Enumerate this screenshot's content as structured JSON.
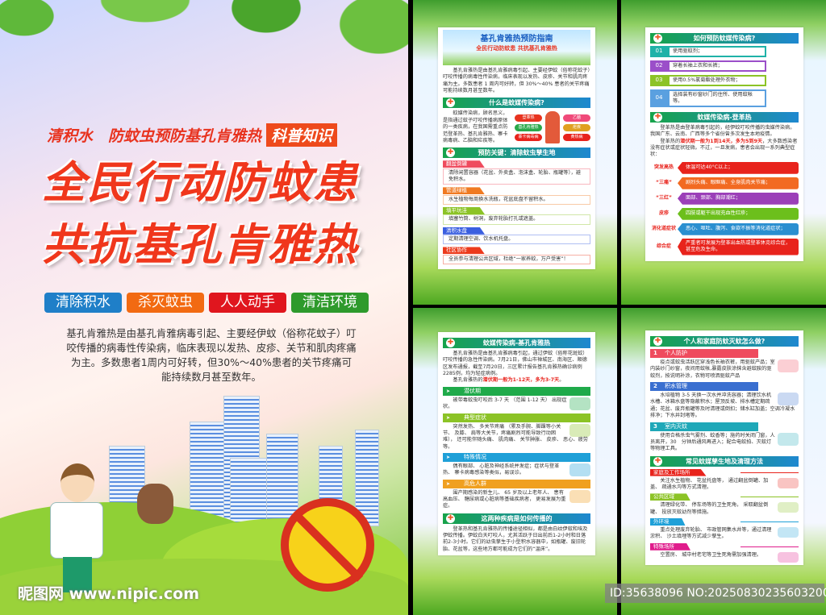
{
  "poster": {
    "subtitle": "清积水　防蚊虫预防基孔肯雅热",
    "badge": "科普知识",
    "title_line1": "全民行动防蚊患",
    "title_line2": "共抗基孔肯雅热",
    "tags": [
      {
        "label": "清除积水",
        "color": "#1f7fc8"
      },
      {
        "label": "杀灭蚊虫",
        "color": "#f26a12"
      },
      {
        "label": "人人动手",
        "color": "#e0161e"
      },
      {
        "label": "清洁环境",
        "color": "#2e9a2c"
      }
    ],
    "intro": "基孔肯雅热是由基孔肯雅病毒引起、主要经伊蚊（俗称花蚊子）叮咬传播的病毒性传染病，临床表现以发热、皮疹、关节和肌肉疼痛为主。多数患者1周内可好转，但30%～40%患者的关节疼痛可能持续数月甚至数年。",
    "watermark": "昵图网 www.nipic.com"
  },
  "panel1": {
    "banner_title": "基孔肯雅热预防指南",
    "banner_sub": "全民行动防蚊患 共抗基孔肯雅热",
    "intro": "基孔肯雅热是由基孔肯雅病毒引起、主要经伊蚊（俗称花蚊子）叮咬传播的病毒性传染病，临床表现以发热、皮疹、关节和肌肉疼痛为主。多数患者 1 周内可好转，但 30%～40% 患者的关节疼痛可能持续数月甚至数年。",
    "section1": "什么是蚊媒传染病?",
    "section1_text": "蚊媒传染病，顾名思义，是指通过蚊子叮咬传播病原体的一类疾病，在我国需重点防范登革热、基孔肯雅热、寨卡病毒病、乙脑和疟疾等。",
    "diseases_left": [
      "登革热",
      "基孔肯雅热",
      "寨卡病毒病"
    ],
    "diseases_right": [
      "乙脑",
      "疟疾",
      "黄热病"
    ],
    "section2": "预防关键：清除蚊虫孳生地",
    "items": [
      {
        "label": "翻盆倒罐",
        "text": "清除闲置容器（花盆、外卖盒、泡沫盒、轮胎、瓶罐等），避免积水。",
        "color": "#ef4b5e"
      },
      {
        "label": "管道绿植",
        "text": "水生植物每周换水洗瓶，花盆底盘不留积水。",
        "color": "#f07a22"
      },
      {
        "label": "填平坑洼",
        "text": "填塞竹筒、树洞，废弃轮胎打孔或遮盖。",
        "color": "#8cc326"
      },
      {
        "label": "清积水盘",
        "text": "定期清理空调、饮水机托盘。",
        "color": "#3a5fe0"
      },
      {
        "label": "社区协作",
        "text": "全员参与清理公共区域，杜绝“一家养蚊，万户受害”！",
        "color": "#ec3a1c"
      }
    ]
  },
  "panel2": {
    "section1": "如何预防蚊媒传染病?",
    "steps": [
      {
        "num": "01",
        "text": "使用驱蚊剂；",
        "color": "#1fb2a8"
      },
      {
        "num": "02",
        "text": "穿着长袖上衣和长裤；",
        "color": "#9b4fc9"
      },
      {
        "num": "03",
        "text": "使用0.5%氯菊酯处理外衣物；",
        "color": "#8cc326"
      },
      {
        "num": "04",
        "text": "选择装有纱窗纱门的住所、使用蚊帐等。",
        "color": "#5aa0e0"
      }
    ],
    "section2": "蚊媒传染病-登革热",
    "para1": "登革热是由登革病毒引起的，经伊蚊叮咬传播的虫媒传染病。我国广东、云南、广西等多个省份曾多次发生本地疫情。",
    "para2_pre": "登革热的",
    "para2_hl": "潜伏期一般为1到14天，多为5到9天",
    "para2_post": "，大多数感染者没有症状或症状轻微。不过，一旦发病，患者会出现一系列典型症状：",
    "symptoms": [
      {
        "key": "突发高热",
        "text": "体温可达40°C以上；",
        "color": "#e8231c"
      },
      {
        "key": "“三痛”",
        "text": "剧烈头痛、眼眶痛、全身肌肉关节痛；",
        "color": "#f26a22"
      },
      {
        "key": "“三红”",
        "text": "面部、颈部、胸部潮红；",
        "color": "#9b3fb8"
      },
      {
        "key": "皮疹",
        "text": "四肢或躯干出现充血性红疹；",
        "color": "#6cbf1c"
      },
      {
        "key": "消化道症状",
        "text": "恶心、呕吐、腹泻、食欲不振等消化道症状；",
        "color": "#2a8fd0"
      },
      {
        "key": "综合症",
        "text": "严重者可发展为登革出血热或登革休克综合症，甚至危及生命。",
        "color": "#e8231c"
      }
    ]
  },
  "panel3": {
    "section1": "蚊媒传染病-基孔肯雅热",
    "para1": "基孔肯雅热是由基孔肯雅病毒引起，通过伊蚊（俗称花斑蚊）叮咬传播的急性传染病。7月21日，佛山市禅城区、南海区、顺德区发布通报，截至7月20日，三区累计报告基孔肯雅热确诊病例2285例，均为轻症病例。",
    "para2_pre": "基孔肯雅热的",
    "para2_hl": "潜伏期一般为1-12天，多为3-7天",
    "para2_post": "。",
    "subs": [
      {
        "label": "潜伏期",
        "text": "被带毒蚊虫叮咬后 3-7 天 （范围 1-12 天） 出现症状。",
        "color": "#1faa4a"
      },
      {
        "label": "典型症状",
        "text": "突然发热、 多关节疼痛 （累及手腕、脚踝等小关节、 及膝、 肩等大关节，疼痛剧烈可能导致行动困难）， 还可能伴随头痛、 肌肉痛、 关节肿胀、 皮疹、 恶心、疲劳等。",
        "color": "#8cc326"
      },
      {
        "label": "特殊情况",
        "text": "偶有眼部、 心脏及神经系统并发症；症状与登革热、 寨卡病毒感染等类似，易误诊。",
        "color": "#1fa0d8"
      },
      {
        "label": "高危人群",
        "text": "围产期感染的新生儿、 65 岁及以上老年人、 患有高血压、 糖尿病或心脏病等基础疾病者， 更易发展为重症。",
        "color": "#f0a020"
      }
    ],
    "section2": "这两种疾病是如何传播的",
    "para3": "登革热和基孔肯雅热的传播途径相似，都是由白纹伊蚊和埃及伊蚊传播。伊蚊白天叮咬人，尤其活跃于日出前后1-2小时和日落前2-3小时。它们的幼虫孳生于小型积水容器中，如瓶罐、废旧轮胎、花盆等，这些地方都可能成为它们的“温床”。"
  },
  "panel4": {
    "section1": "个人和家庭防蚊灭蚊怎么做?",
    "steps": [
      {
        "num": "1",
        "label": "个人防护",
        "text": "疫点或蚊虫活跃区穿浅色长袖衣裤，用驱蚊产品；室内装纱门纱窗，夜间用蚊帐,暴露皮肤涂抹含避蚊胺的驱蚊剂，按说明补涂，衣物可喷洒驱蚊产品",
        "color": "#ef4b5e"
      },
      {
        "num": "2",
        "label": "积水管理",
        "text": "水培植物 3-5 天换一次水并冲洗容器；清理饮水机水槽、冰箱水盘等隐蔽积水；屋顶反坡、排水槽定期疏通；花盆、废弃瓶罐等及时清理或倒扣；储水缸加盖；空调冷凝水排净；下水井封堵等。",
        "color": "#3a6fd0"
      },
      {
        "num": "3",
        "label": "室内灭蚊",
        "text": "使用合格杀虫气雾剂、蚊香等；施药时关闭门窗，人员离开，30　分钟后通风再进入；配合电蚊拍、灭蚊灯等物理工具。",
        "color": "#1fa8b8"
      }
    ],
    "section2": "常见蚊媒孳生地及清理方法",
    "places": [
      {
        "label": "家庭及工作场所",
        "text": "关注水生植物、 花盆托盘等， 通过翻盆倒罐、加盖、 疏通水沟等方式清理。",
        "color": "#e8231c"
      },
      {
        "label": "公共区域",
        "text": "清理绿化带、 停车场等的卫生死角， 采取翻盆倒罐、 投放灭蚊幼剂等措施。",
        "color": "#8cc326"
      },
      {
        "label": "外环境",
        "text": "重点处理废弃轮胎、 市政管网集水井等，通过清理淤积、 沙土填埋等方式减少孳生。",
        "color": "#1fa0d8"
      },
      {
        "label": "特殊场所",
        "text": "空置房、 城中村老宅等卫生死角需加强清理。",
        "color": "#e01c8c"
      }
    ]
  },
  "id_watermark": "ID:35638096 NO:20250830235603200105",
  "cross_icon": "✚"
}
